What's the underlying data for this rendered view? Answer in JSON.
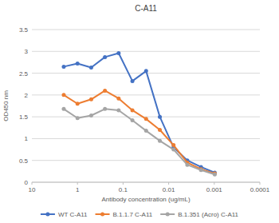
{
  "chart_data": {
    "type": "line",
    "title": "C-A11",
    "x_label": "Antibody concentration (ug/mL)",
    "y_label": "OD450 nm",
    "x": [
      2,
      1,
      0.5,
      0.25,
      0.125,
      0.0625,
      0.03125,
      0.015625,
      0.0078125,
      0.00390625,
      0.001953125,
      0.0009765625
    ],
    "series": [
      {
        "name": "WT C-A11",
        "color": "#4472c4",
        "marker": "circle",
        "values": [
          2.65,
          2.72,
          2.63,
          2.87,
          2.96,
          2.32,
          2.55,
          1.5,
          0.8,
          0.5,
          0.35,
          0.22
        ]
      },
      {
        "name": "B.1.1.7 C-A11",
        "color": "#ed7d31",
        "marker": "circle",
        "values": [
          2.0,
          1.8,
          1.9,
          2.1,
          1.92,
          1.65,
          1.45,
          1.2,
          0.85,
          0.45,
          0.3,
          0.2
        ]
      },
      {
        "name": "B.1.351 (Acro) C-A11",
        "color": "#a5a5a5",
        "marker": "circle",
        "values": [
          1.68,
          1.47,
          1.53,
          1.68,
          1.65,
          1.42,
          1.18,
          0.95,
          0.75,
          0.4,
          0.28,
          0.18
        ]
      }
    ],
    "log": "x",
    "xlim": [
      10,
      0.0001
    ],
    "xticks": [
      10,
      1,
      0.1,
      0.01,
      0.001,
      0.0001
    ],
    "ylim": [
      0,
      3.5
    ],
    "yticks": [
      0,
      0.5,
      1,
      1.5,
      2,
      2.5,
      3,
      3.5
    ],
    "grid": true,
    "legend": "bottom"
  }
}
